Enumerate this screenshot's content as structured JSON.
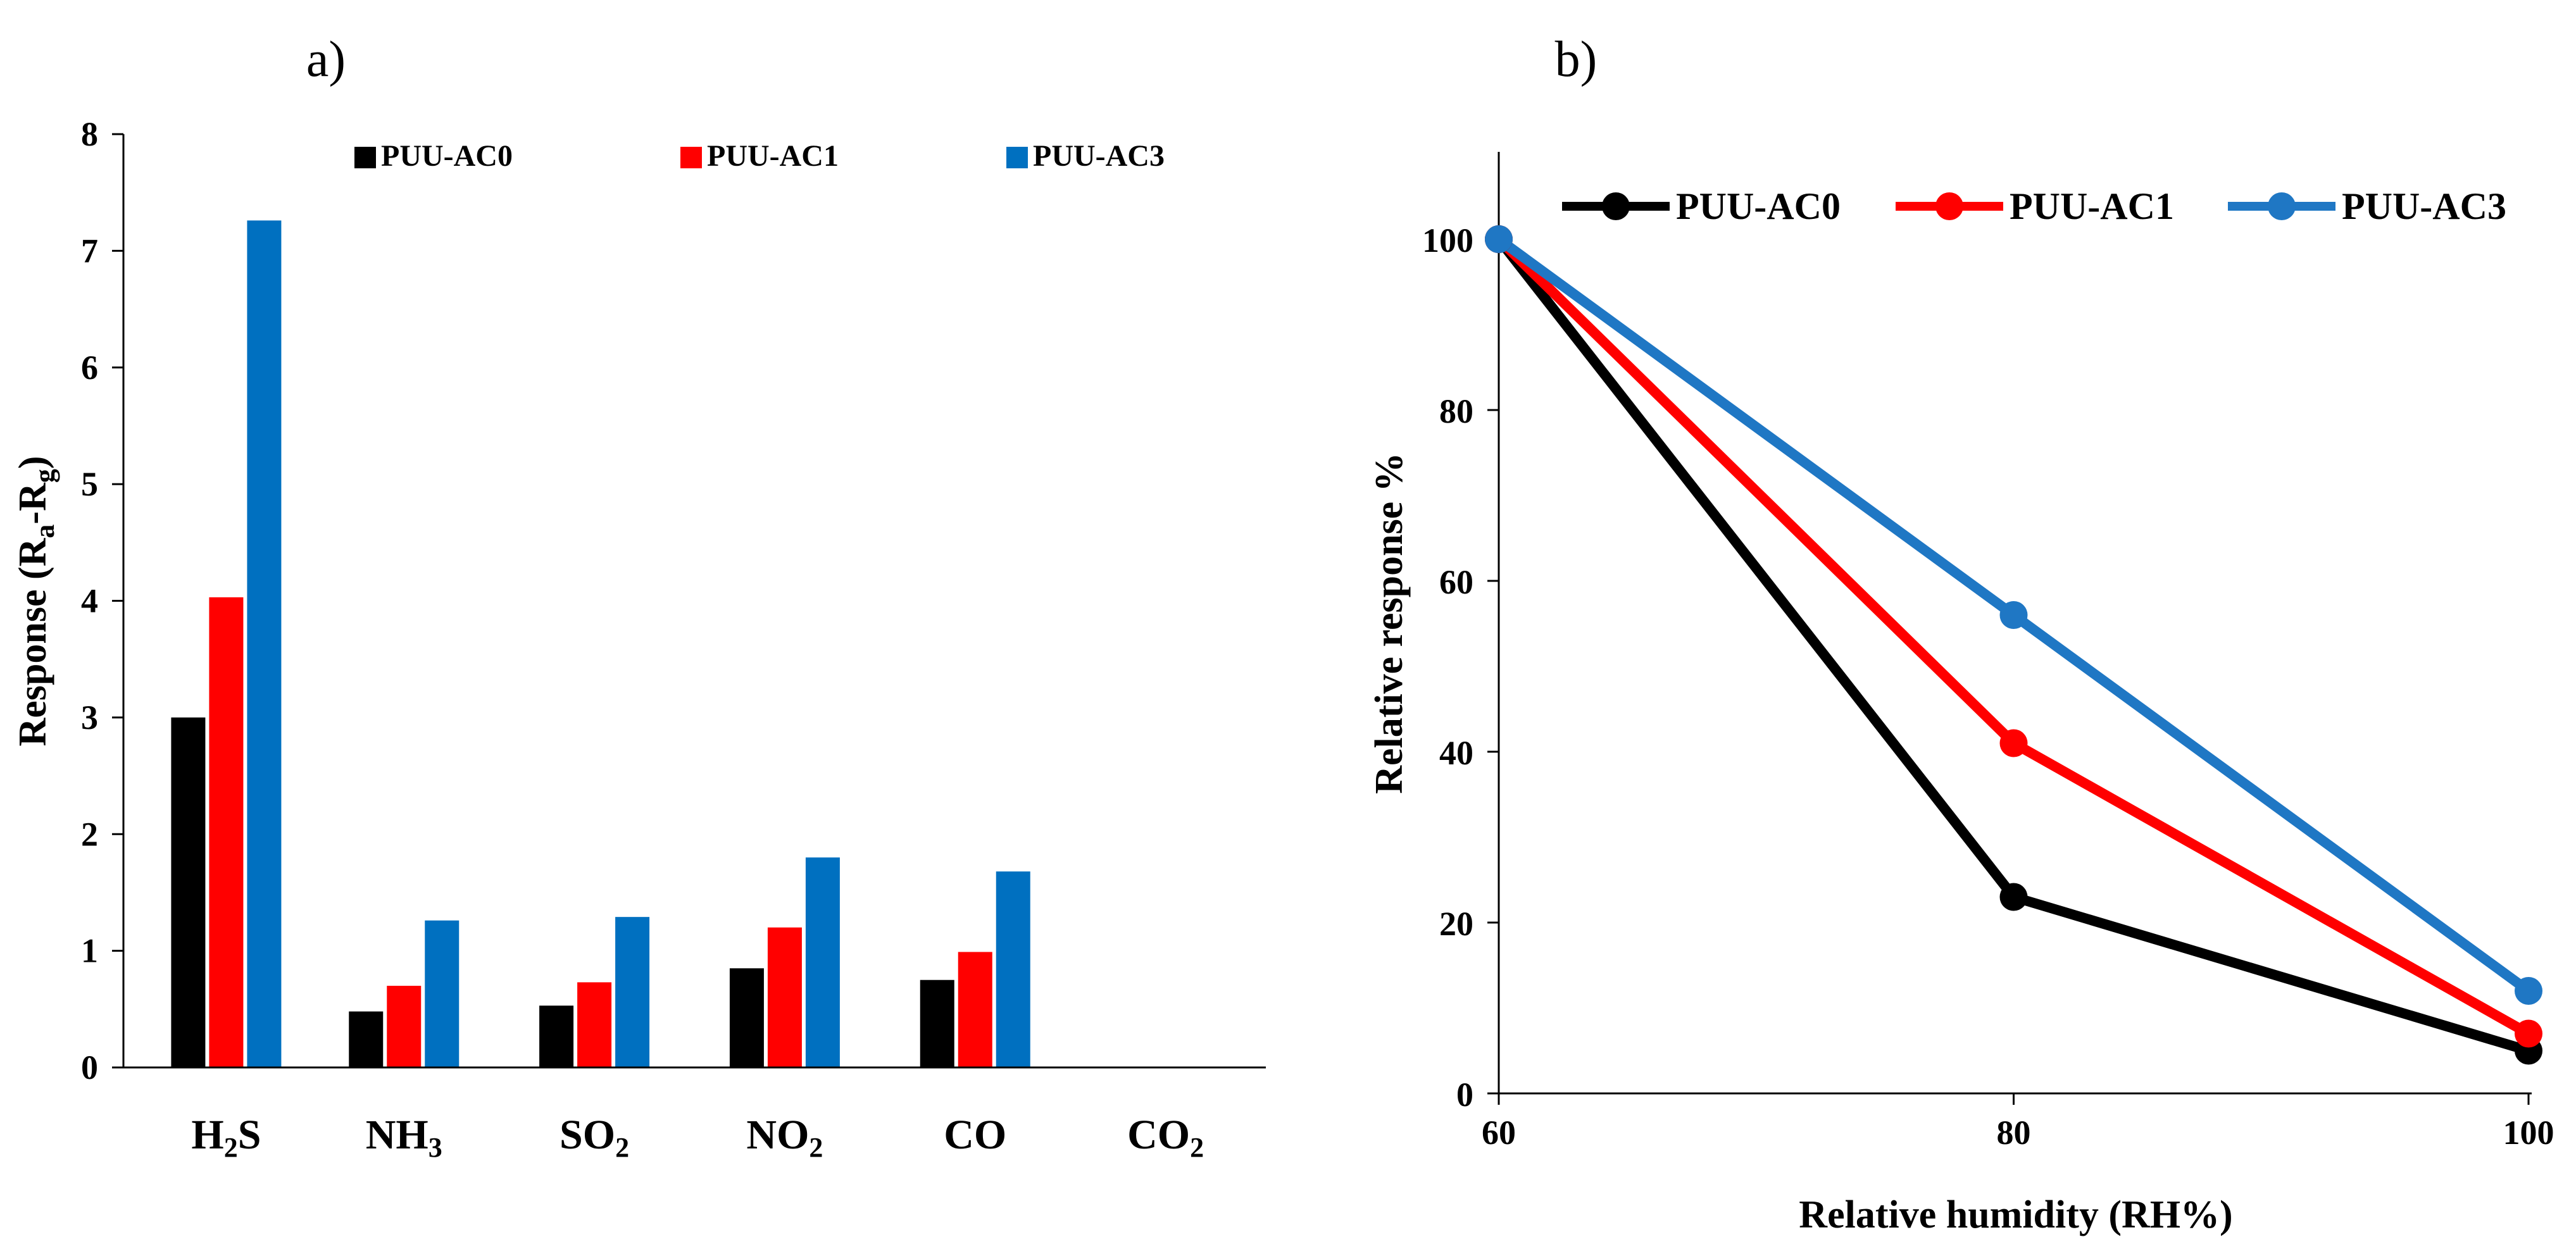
{
  "chart_data": [
    {
      "panel_label": "a)",
      "type": "bar",
      "ylabel": "Response (Ra-Rg)",
      "ylim": [
        0,
        8
      ],
      "yticks": [
        "0",
        "1",
        "2",
        "3",
        "4",
        "5",
        "6",
        "7",
        "8"
      ],
      "categories": [
        {
          "base": "H",
          "sub": "2",
          "tail": "S"
        },
        {
          "base": "NH",
          "sub": "3",
          "tail": ""
        },
        {
          "base": "SO",
          "sub": "2",
          "tail": ""
        },
        {
          "base": "NO",
          "sub": "2",
          "tail": ""
        },
        {
          "base": "CO",
          "sub": "",
          "tail": ""
        },
        {
          "base": "CO",
          "sub": "2",
          "tail": ""
        }
      ],
      "series": [
        {
          "name": "PUU-AC0",
          "color": "#000000",
          "values": [
            3.0,
            0.48,
            0.53,
            0.85,
            0.75,
            0
          ]
        },
        {
          "name": "PUU-AC1",
          "color": "#ff0000",
          "values": [
            4.03,
            0.7,
            0.73,
            1.2,
            0.99,
            0
          ]
        },
        {
          "name": "PUU-AC3",
          "color": "#0070c0",
          "values": [
            7.26,
            1.26,
            1.29,
            1.8,
            1.68,
            0
          ]
        }
      ],
      "legend_position": "top"
    },
    {
      "panel_label": "b)",
      "type": "line",
      "xlabel": "Relative humidity (RH%)",
      "ylabel": "Relative response %",
      "xlim": [
        60,
        100
      ],
      "ylim": [
        0,
        100
      ],
      "x": [
        60,
        80,
        100
      ],
      "xticks": [
        "60",
        "80",
        "100"
      ],
      "yticks": [
        "0",
        "20",
        "40",
        "60",
        "80",
        "100"
      ],
      "series": [
        {
          "name": "PUU-AC0",
          "color": "#000000",
          "values": [
            100,
            23,
            5
          ]
        },
        {
          "name": "PUU-AC1",
          "color": "#ff0000",
          "values": [
            100,
            41,
            7
          ]
        },
        {
          "name": "PUU-AC3",
          "color": "#1f77c4",
          "values": [
            100,
            56,
            12
          ]
        }
      ],
      "legend_position": "top"
    }
  ]
}
